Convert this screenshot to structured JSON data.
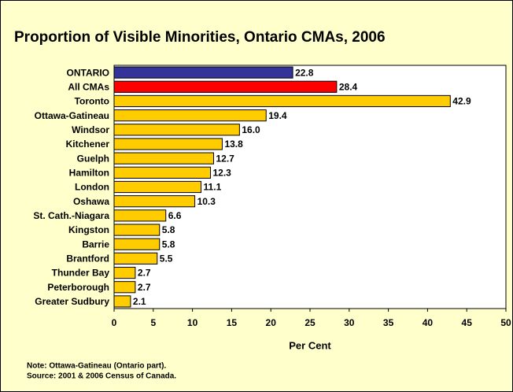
{
  "chart_data": {
    "type": "hbar",
    "title": "Proportion of Visible Minorities, Ontario CMAs, 2006",
    "categories": [
      "ONTARIO",
      "All CMAs",
      "Toronto",
      "Ottawa-Gatineau",
      "Windsor",
      "Kitchener",
      "Guelph",
      "Hamilton",
      "London",
      "Oshawa",
      "St. Cath.-Niagara",
      "Kingston",
      "Barrie",
      "Brantford",
      "Thunder Bay",
      "Peterborough",
      "Greater Sudbury"
    ],
    "values": [
      22.8,
      28.4,
      42.9,
      19.4,
      16.0,
      13.8,
      12.7,
      12.3,
      11.1,
      10.3,
      6.6,
      5.8,
      5.8,
      5.5,
      2.7,
      2.7,
      2.1
    ],
    "value_labels": [
      "22.8",
      "28.4",
      "42.9",
      "19.4",
      "16.0",
      "13.8",
      "12.7",
      "12.3",
      "11.1",
      "10.3",
      "6.6",
      "5.8",
      "5.8",
      "5.5",
      "2.7",
      "2.7",
      "2.1"
    ],
    "colors": [
      "#333399",
      "#ff0000",
      "#ffcc00",
      "#ffcc00",
      "#ffcc00",
      "#ffcc00",
      "#ffcc00",
      "#ffcc00",
      "#ffcc00",
      "#ffcc00",
      "#ffcc00",
      "#ffcc00",
      "#ffcc00",
      "#ffcc00",
      "#ffcc00",
      "#ffcc00",
      "#ffcc00"
    ],
    "xlabel": "Per Cent",
    "xlim": [
      0,
      50
    ],
    "xticks": [
      0,
      5,
      10,
      15,
      20,
      25,
      30,
      35,
      40,
      45,
      50
    ],
    "grid": false,
    "notes": [
      "Note: Ottawa-Gatineau (Ontario part).",
      "Source: 2001 & 2006 Census of Canada."
    ]
  }
}
